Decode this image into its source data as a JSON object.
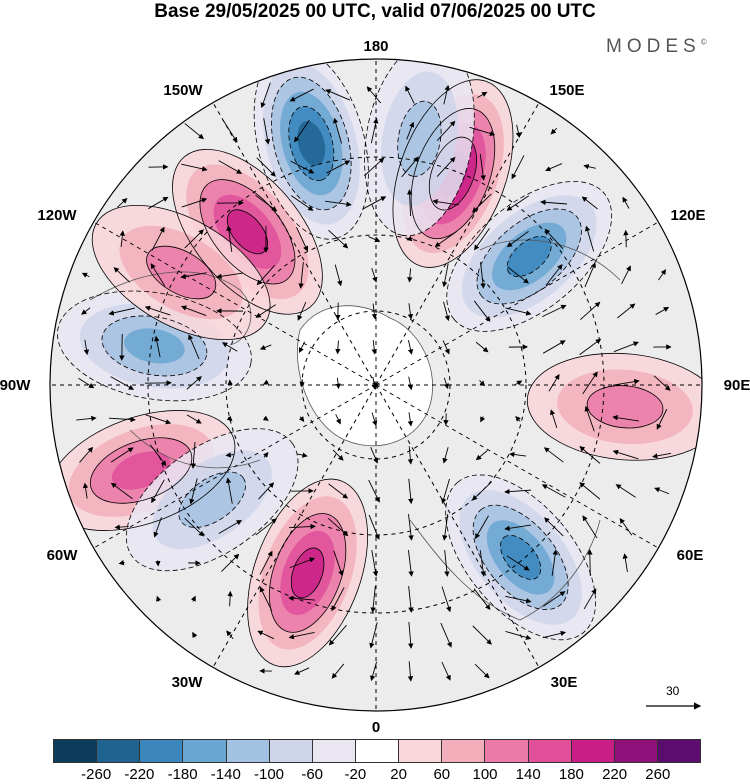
{
  "title": "Base 29/05/2025 00 UTC, valid 07/06/2025 00 UTC",
  "brand": {
    "name": "MODES",
    "mark": "©"
  },
  "longitude_labels": [
    {
      "text": "180",
      "dir": "top"
    },
    {
      "text": "150E",
      "dir": "ne"
    },
    {
      "text": "120E",
      "dir": "ene"
    },
    {
      "text": "90E",
      "dir": "east"
    },
    {
      "text": "60E",
      "dir": "ese"
    },
    {
      "text": "30E",
      "dir": "se"
    },
    {
      "text": "0",
      "dir": "bottom"
    },
    {
      "text": "30W",
      "dir": "sw"
    },
    {
      "text": "60W",
      "dir": "wsw"
    },
    {
      "text": "90W",
      "dir": "west"
    },
    {
      "text": "120W",
      "dir": "wnw"
    },
    {
      "text": "150W",
      "dir": "nw"
    }
  ],
  "reference_vector": {
    "label": "30"
  },
  "colorbar": {
    "colors": [
      "#0c3c5c",
      "#1f6391",
      "#3a86bd",
      "#6aa6d2",
      "#a3c2e2",
      "#cfd5eb",
      "#e9e6f2",
      "#ffffff",
      "#f9d6da",
      "#f2aebb",
      "#ea7aa8",
      "#e14f9a",
      "#c81e86",
      "#90117a",
      "#5c0c6e"
    ],
    "ticks": [
      "-260",
      "-220",
      "-180",
      "-140",
      "-100",
      "-60",
      "-20",
      "20",
      "60",
      "100",
      "140",
      "180",
      "220",
      "260"
    ]
  },
  "anomaly_centres": [
    {
      "sign": "positive",
      "intensity": 180,
      "bearing_deg": 200
    },
    {
      "sign": "negative",
      "intensity": -200,
      "bearing_deg": 140
    },
    {
      "sign": "positive",
      "intensity": 120,
      "bearing_deg": 95
    },
    {
      "sign": "negative",
      "intensity": -200,
      "bearing_deg": 50
    },
    {
      "sign": "positive",
      "intensity": 230,
      "bearing_deg": 20
    },
    {
      "sign": "negative",
      "intensity": -240,
      "bearing_deg": 345
    },
    {
      "sign": "positive",
      "intensity": 200,
      "bearing_deg": 320
    },
    {
      "sign": "negative",
      "intensity": -160,
      "bearing_deg": 280
    },
    {
      "sign": "positive",
      "intensity": 140,
      "bearing_deg": 250
    },
    {
      "sign": "negative",
      "intensity": -120,
      "bearing_deg": 235
    },
    {
      "sign": "positive",
      "intensity": 100,
      "bearing_deg": 300
    },
    {
      "sign": "negative",
      "intensity": -100,
      "bearing_deg": 10
    }
  ]
}
